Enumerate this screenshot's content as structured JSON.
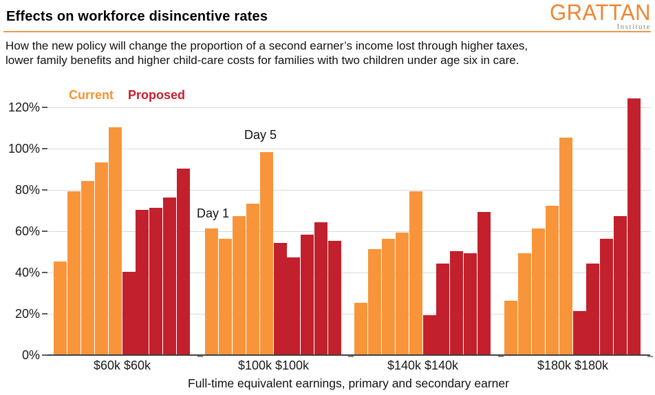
{
  "header": {
    "title": "Effects on workforce disincentive rates",
    "subtitle_lines": [
      "How the new policy will change the proportion of a second earner’s income lost through higher taxes,",
      "lower family benefits and higher child-care costs for families with two children under age six in care."
    ],
    "logo": {
      "name": "GRATTAN",
      "subname": "Institute"
    },
    "accent_color": "#F79646"
  },
  "legend": {
    "items": [
      {
        "label": "Current",
        "color": "#F79333"
      },
      {
        "label": "Proposed",
        "color": "#C81E2E"
      }
    ]
  },
  "chart_data": {
    "type": "bar",
    "title": "Effects on workforce disincentive rates",
    "categories": [
      "$60k $60k",
      "$100k $100k",
      "$140k $140k",
      "$180k $180k"
    ],
    "series": [
      {
        "name": "Current",
        "color": "#F8953B",
        "values": [
          [
            45,
            79,
            84,
            93,
            110
          ],
          [
            61,
            56,
            67,
            73,
            98
          ],
          [
            25,
            51,
            56,
            59,
            79
          ],
          [
            26,
            49,
            61,
            72,
            105
          ]
        ]
      },
      {
        "name": "Proposed",
        "color": "#C2202C",
        "values": [
          [
            40,
            70,
            71,
            76,
            90
          ],
          [
            54,
            47,
            58,
            64,
            55
          ],
          [
            19,
            44,
            50,
            49,
            69
          ],
          [
            21,
            44,
            56,
            67,
            124
          ]
        ]
      }
    ],
    "ylim": [
      0,
      120
    ],
    "y_tick_values": [
      120,
      100,
      80,
      60,
      40,
      20,
      0
    ],
    "y_tick_labels": [
      "120%",
      "100%",
      "80%",
      "60%",
      "40%",
      "20%",
      "0%"
    ],
    "xlabel": "Full-time equivalent earnings, primary and secondary earner",
    "ylabel": "",
    "grid": true,
    "legend_position": "top-left",
    "annotations": [
      {
        "text": "Day 1"
      },
      {
        "text": "Day 5"
      }
    ],
    "gridline_color": "#D9D9D9",
    "axis_color": "#404040"
  }
}
